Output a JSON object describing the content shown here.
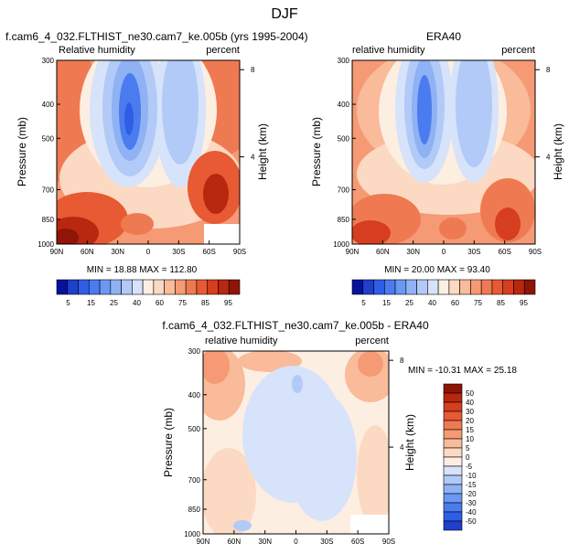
{
  "figure_title": "DJF",
  "colors": {
    "neg": [
      "#08119c",
      "#1f3fcc",
      "#2f5ee6",
      "#4a7cf0",
      "#6b98f3",
      "#8fb2f5",
      "#b2caf7",
      "#d6e3fa"
    ],
    "pos": [
      "#fdeee2",
      "#fcd9c2",
      "#f9bb9a",
      "#f59a75",
      "#ef7a51",
      "#e85a33",
      "#d63e1f",
      "#b8270f",
      "#8e1507"
    ],
    "rh": [
      "#08119c",
      "#1f3fcc",
      "#2f5ee6",
      "#4a7cf0",
      "#6b98f3",
      "#8fb2f5",
      "#b2caf7",
      "#d6e3fa",
      "#fdeee2",
      "#fcd9c2",
      "#f9bb9a",
      "#f59a75",
      "#ef7a51",
      "#e85a33",
      "#d63e1f",
      "#b8270f",
      "#8e1507"
    ]
  },
  "chart_data": [
    {
      "type": "heatmap",
      "id": "model",
      "title": "f.cam6_4_032.FLTHIST_ne30.cam7_ke.005b (yrs 1995-2004)",
      "left_label": "Relative humidity",
      "right_label": "percent",
      "ylabel": "Pressure (mb)",
      "ylabel_right": "Height (km)",
      "xticks": [
        "90N",
        "60N",
        "30N",
        "0",
        "30S",
        "60S",
        "90S"
      ],
      "xtick_values": [
        90,
        60,
        30,
        0,
        -30,
        -60,
        -90
      ],
      "yticks": [
        "300",
        "400",
        "500",
        "700",
        "850",
        "1000"
      ],
      "ytick_values": [
        300,
        400,
        500,
        700,
        850,
        1000
      ],
      "right_ticks": [
        "8",
        "4"
      ],
      "right_tick_values": [
        8,
        4
      ],
      "ylim": [
        300,
        1000
      ],
      "xlim": [
        90,
        -90
      ],
      "stats": "MIN = 18.88   MAX = 112.80",
      "colorbar": {
        "orientation": "horizontal",
        "labels": [
          "5",
          "15",
          "25",
          "40",
          "60",
          "75",
          "85",
          "95"
        ],
        "bins": 17
      }
    },
    {
      "type": "heatmap",
      "id": "obs",
      "title": "ERA40",
      "left_label": "relative humidity",
      "right_label": "percent",
      "ylabel": "Pressure (mb)",
      "ylabel_right": "Height (km)",
      "xticks": [
        "90N",
        "60N",
        "30N",
        "0",
        "30S",
        "60S",
        "90S"
      ],
      "xtick_values": [
        90,
        60,
        30,
        0,
        -30,
        -60,
        -90
      ],
      "yticks": [
        "300",
        "400",
        "500",
        "700",
        "850",
        "1000"
      ],
      "ytick_values": [
        300,
        400,
        500,
        700,
        850,
        1000
      ],
      "right_ticks": [
        "8",
        "4"
      ],
      "right_tick_values": [
        8,
        4
      ],
      "ylim": [
        300,
        1000
      ],
      "xlim": [
        90,
        -90
      ],
      "stats": "MIN = 20.00   MAX = 93.40",
      "colorbar": {
        "orientation": "horizontal",
        "labels": [
          "5",
          "15",
          "25",
          "40",
          "60",
          "75",
          "85",
          "95"
        ],
        "bins": 17
      }
    },
    {
      "type": "heatmap",
      "id": "diff",
      "title": "f.cam6_4_032.FLTHIST_ne30.cam7_ke.005b - ERA40",
      "left_label": "relative humidity",
      "right_label": "percent",
      "ylabel": "Pressure (mb)",
      "ylabel_right": "Height (km)",
      "xticks": [
        "90N",
        "60N",
        "30N",
        "0",
        "30S",
        "60S",
        "90S"
      ],
      "xtick_values": [
        90,
        60,
        30,
        0,
        -30,
        -60,
        -90
      ],
      "yticks": [
        "300",
        "400",
        "500",
        "700",
        "850",
        "1000"
      ],
      "ytick_values": [
        300,
        400,
        500,
        700,
        850,
        1000
      ],
      "right_ticks": [
        "8",
        "4"
      ],
      "right_tick_values": [
        8,
        4
      ],
      "ylim": [
        300,
        1000
      ],
      "xlim": [
        90,
        -90
      ],
      "stats": "MIN = -10.31   MAX = 25.18",
      "colorbar": {
        "orientation": "vertical",
        "labels": [
          "50",
          "40",
          "30",
          "20",
          "15",
          "10",
          "5",
          "0",
          "-5",
          "-10",
          "-15",
          "-20",
          "-30",
          "-40",
          "-50"
        ],
        "bins": 16
      }
    }
  ]
}
